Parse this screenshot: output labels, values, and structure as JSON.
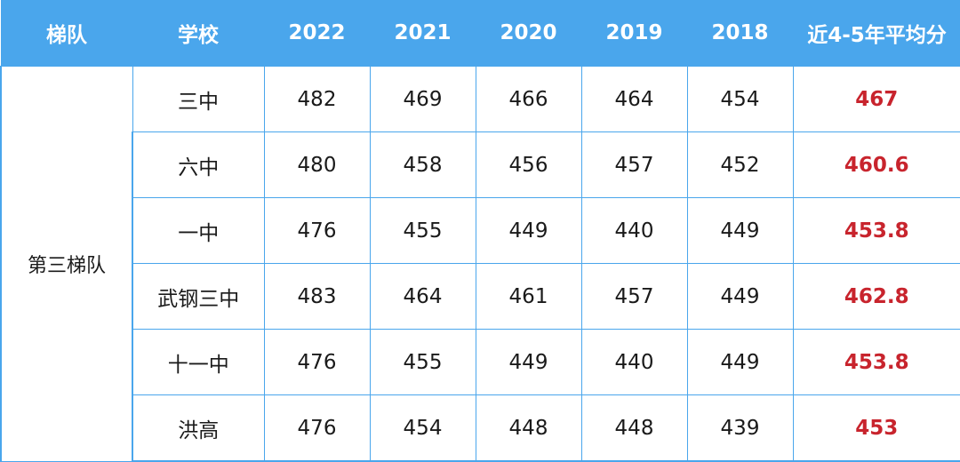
{
  "table": {
    "headers": [
      "梯队",
      "学校",
      "2022",
      "2021",
      "2020",
      "2019",
      "2018",
      "近4-5年平均分"
    ],
    "tier": "第三梯队",
    "rows": [
      {
        "school": "三中",
        "scores": [
          "482",
          "469",
          "466",
          "464",
          "454"
        ],
        "average": "467"
      },
      {
        "school": "六中",
        "scores": [
          "480",
          "458",
          "456",
          "457",
          "452"
        ],
        "average": "460.6"
      },
      {
        "school": "一中",
        "scores": [
          "476",
          "455",
          "449",
          "440",
          "449"
        ],
        "average": "453.8"
      },
      {
        "school": "武钢三中",
        "scores": [
          "483",
          "464",
          "461",
          "457",
          "449"
        ],
        "average": "462.8"
      },
      {
        "school": "十一中",
        "scores": [
          "476",
          "455",
          "449",
          "440",
          "449"
        ],
        "average": "453.8"
      },
      {
        "school": "洪高",
        "scores": [
          "476",
          "454",
          "448",
          "448",
          "439"
        ],
        "average": "453"
      }
    ]
  },
  "colors": {
    "header_bg": "#4aa6ec",
    "header_text": "#ffffff",
    "grid_line": "#4aa6ec",
    "average_text": "#c8242d"
  }
}
